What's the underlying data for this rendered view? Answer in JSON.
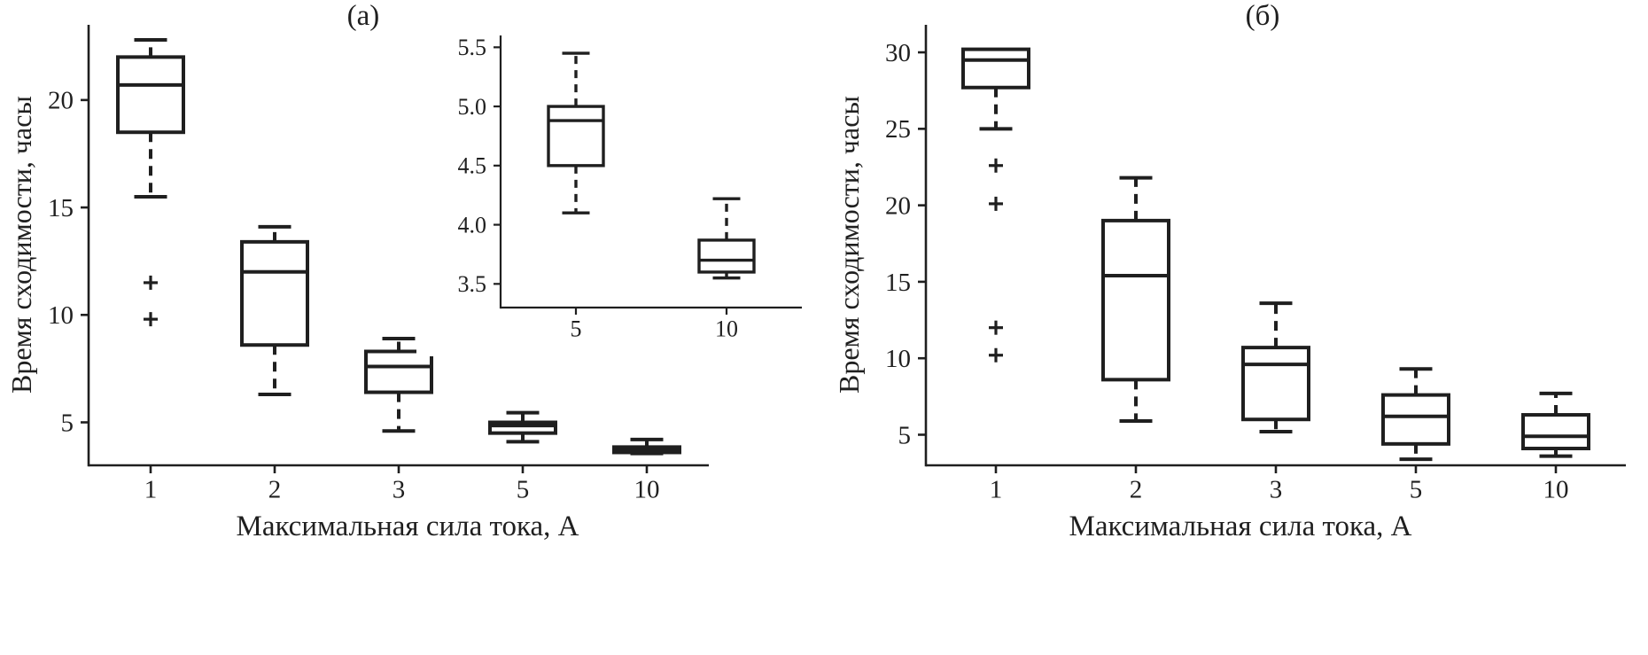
{
  "figure": {
    "background": "#ffffff",
    "ink": "#1f1f1f"
  },
  "chart_data": [
    {
      "type": "boxplot",
      "panel": "a",
      "title": "(а)",
      "xlabel": "Максимальная сила тока, А",
      "ylabel": "Время сходимости, часы",
      "categories": [
        "1",
        "2",
        "3",
        "5",
        "10"
      ],
      "ylim": [
        3.0,
        23.5
      ],
      "yticks": [
        {
          "v": 5,
          "label": "5"
        },
        {
          "v": 10,
          "label": "10"
        },
        {
          "v": 15,
          "label": "15"
        },
        {
          "v": 20,
          "label": "20"
        }
      ],
      "grid": false,
      "whisker_style": "dashed",
      "outlier_marker": "+",
      "boxes": [
        {
          "category": "1",
          "whisker_low": 15.5,
          "q1": 18.5,
          "median": 20.7,
          "q3": 22.0,
          "whisker_high": 22.8,
          "outliers": [
            11.5,
            9.8
          ]
        },
        {
          "category": "2",
          "whisker_low": 6.3,
          "q1": 8.6,
          "median": 12.0,
          "q3": 13.4,
          "whisker_high": 14.1,
          "outliers": []
        },
        {
          "category": "3",
          "whisker_low": 4.6,
          "q1": 6.4,
          "median": 7.6,
          "q3": 8.3,
          "whisker_high": 8.9,
          "outliers": []
        },
        {
          "category": "5",
          "whisker_low": 4.1,
          "q1": 4.5,
          "median": 4.85,
          "q3": 5.0,
          "whisker_high": 5.45,
          "outliers": []
        },
        {
          "category": "10",
          "whisker_low": 3.55,
          "q1": 3.6,
          "median": 3.7,
          "q3": 3.85,
          "whisker_high": 4.2,
          "outliers": []
        }
      ]
    },
    {
      "type": "boxplot",
      "panel": "a-inset",
      "categories": [
        "5",
        "10"
      ],
      "ylim": [
        3.3,
        5.6
      ],
      "yticks": [
        {
          "v": 3.5,
          "label": "3.5"
        },
        {
          "v": 4.0,
          "label": "4.0"
        },
        {
          "v": 4.5,
          "label": "4.5"
        },
        {
          "v": 5.0,
          "label": "5.0"
        },
        {
          "v": 5.5,
          "label": "5.5"
        }
      ],
      "grid": false,
      "whisker_style": "dashed",
      "outlier_marker": "+",
      "boxes": [
        {
          "category": "5",
          "whisker_low": 4.1,
          "q1": 4.5,
          "median": 4.88,
          "q3": 5.0,
          "whisker_high": 5.45,
          "outliers": []
        },
        {
          "category": "10",
          "whisker_low": 3.55,
          "q1": 3.6,
          "median": 3.7,
          "q3": 3.87,
          "whisker_high": 4.22,
          "outliers": []
        }
      ]
    },
    {
      "type": "boxplot",
      "panel": "b",
      "title": "(б)",
      "xlabel": "Максимальная сила тока, А",
      "ylabel": "Время сходимости, часы",
      "categories": [
        "1",
        "2",
        "3",
        "5",
        "10"
      ],
      "ylim": [
        3.0,
        31.8
      ],
      "yticks": [
        {
          "v": 5,
          "label": "5"
        },
        {
          "v": 10,
          "label": "10"
        },
        {
          "v": 15,
          "label": "15"
        },
        {
          "v": 20,
          "label": "20"
        },
        {
          "v": 25,
          "label": "25"
        },
        {
          "v": 30,
          "label": "30"
        }
      ],
      "grid": false,
      "whisker_style": "dashed",
      "outlier_marker": "+",
      "boxes": [
        {
          "category": "1",
          "whisker_low": 25.0,
          "q1": 27.7,
          "median": 29.5,
          "q3": 30.2,
          "whisker_high": 30.2,
          "outliers": [
            22.6,
            20.1,
            12.0,
            10.2
          ]
        },
        {
          "category": "2",
          "whisker_low": 5.9,
          "q1": 8.6,
          "median": 15.4,
          "q3": 19.0,
          "whisker_high": 21.8,
          "outliers": []
        },
        {
          "category": "3",
          "whisker_low": 5.2,
          "q1": 6.0,
          "median": 9.6,
          "q3": 10.7,
          "whisker_high": 13.6,
          "outliers": []
        },
        {
          "category": "5",
          "whisker_low": 3.4,
          "q1": 4.4,
          "median": 6.2,
          "q3": 7.6,
          "whisker_high": 9.3,
          "outliers": []
        },
        {
          "category": "10",
          "whisker_low": 3.6,
          "q1": 4.1,
          "median": 4.9,
          "q3": 6.3,
          "whisker_high": 7.7,
          "outliers": []
        }
      ]
    }
  ]
}
